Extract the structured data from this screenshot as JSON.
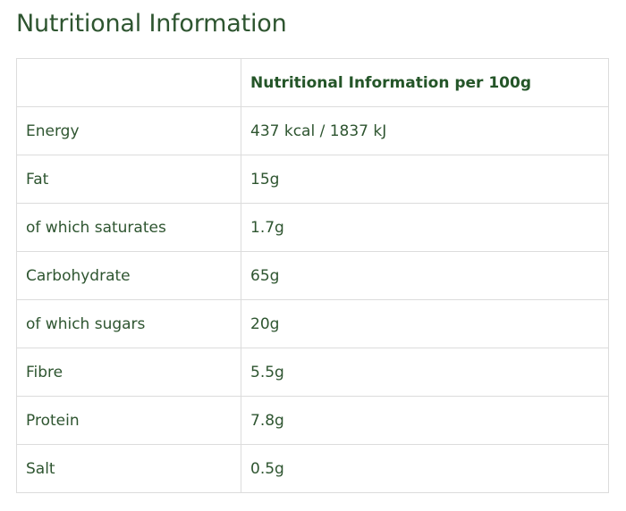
{
  "title": "Nutritional Information",
  "table": {
    "headers": [
      "",
      "Nutritional Information per 100g"
    ],
    "rows": [
      {
        "label": "Energy",
        "value": "437 kcal / 1837 kJ"
      },
      {
        "label": "Fat",
        "value": "15g"
      },
      {
        "label": "of which saturates",
        "value": "1.7g"
      },
      {
        "label": "Carbohydrate",
        "value": "65g"
      },
      {
        "label": "of which sugars",
        "value": "20g"
      },
      {
        "label": "Fibre",
        "value": "5.5g"
      },
      {
        "label": "Protein",
        "value": "7.8g"
      },
      {
        "label": "Salt",
        "value": "0.5g"
      }
    ]
  },
  "colors": {
    "text": "#2e5530",
    "border": "#dcdcdc"
  }
}
